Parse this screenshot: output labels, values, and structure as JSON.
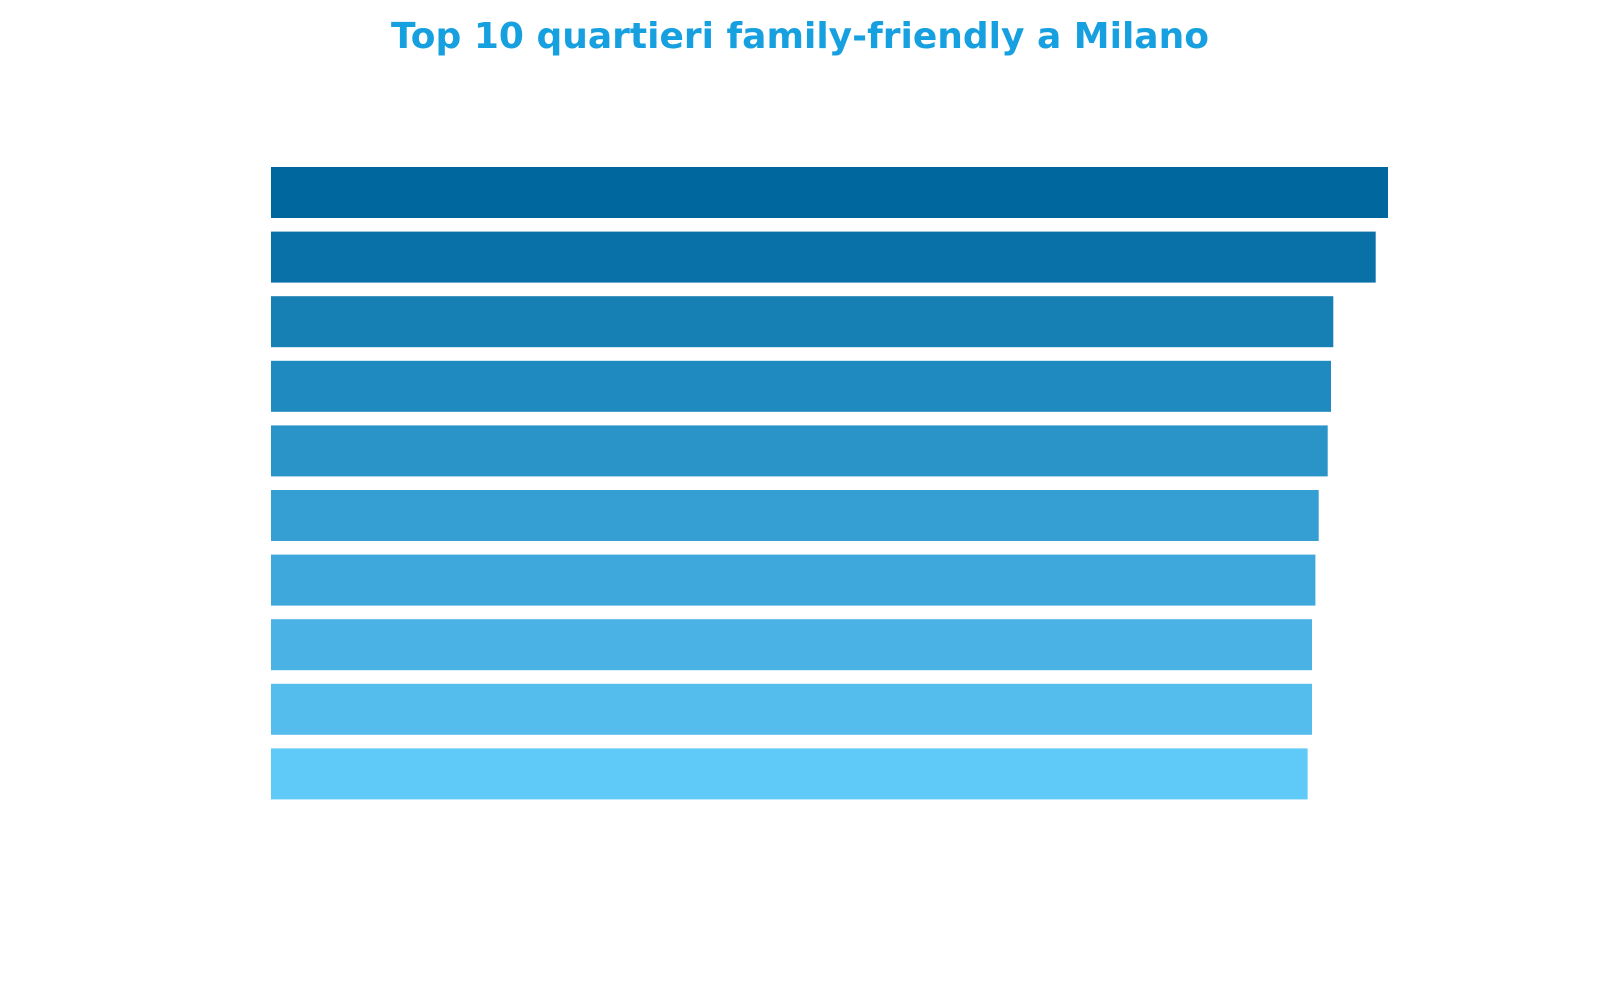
{
  "chart_data": {
    "type": "bar",
    "orientation": "horizontal",
    "title": "Top 10 quartieri family-friendly a Milano",
    "xlabel": "",
    "ylabel": "",
    "axes_visible": false,
    "grid": false,
    "legend": "none",
    "values": [
      100,
      98.9,
      95.1,
      94.9,
      94.6,
      93.8,
      93.5,
      93.2,
      93.2,
      92.8
    ],
    "xlim": [
      0,
      100
    ],
    "bar_colors": [
      "#00679e",
      "#0a71a8",
      "#167fb3",
      "#1f8abf",
      "#2a93c7",
      "#359fd3",
      "#3ea8dc",
      "#4ab2e5",
      "#54bdee",
      "#5fc9f8"
    ]
  },
  "colors": {
    "title": "#16a0e0",
    "background": "#ffffff"
  }
}
